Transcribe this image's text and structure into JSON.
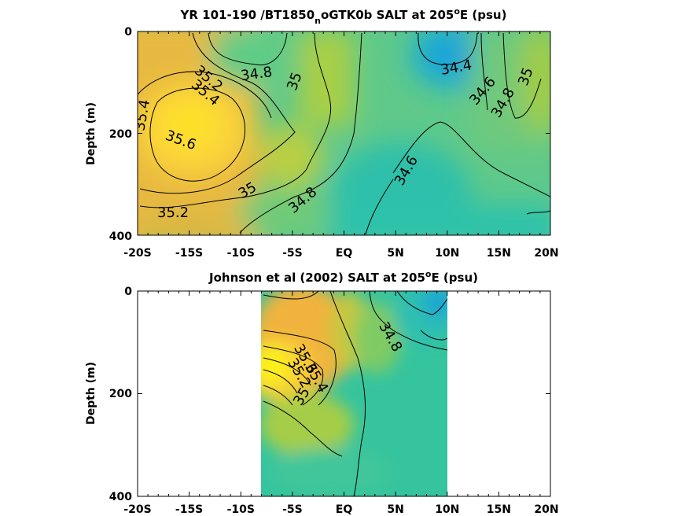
{
  "chart_data": [
    {
      "type": "heatmap",
      "title": {
        "pre": "YR 101-190 /BT1850",
        "sub": "n",
        "mid": "oGTK0b SALT at 205",
        "sup": "o",
        "post": "E (psu)"
      },
      "ylabel": "Depth (m)",
      "x_ticks": [
        "-20S",
        "-15S",
        "-10S",
        "-5S",
        "EQ",
        "5N",
        "10N",
        "15N",
        "20N"
      ],
      "y_ticks": [
        "0",
        "200",
        "400"
      ],
      "xlim": [
        -20,
        20
      ],
      "ylim": [
        400,
        0
      ],
      "data_extent_lat": [
        -20,
        20
      ],
      "contour_labels": [
        "35.2",
        "35.4",
        "35.4",
        "34.8",
        "35",
        "35.6",
        "35",
        "34.8",
        "35.2",
        "34.6",
        "34.4",
        "34.6",
        "34.8",
        "35"
      ]
    },
    {
      "type": "heatmap",
      "title": {
        "pre": "Johnson et al (2002) SALT at 205",
        "sup": "o",
        "post": "E (psu)"
      },
      "ylabel": "Depth (m)",
      "x_ticks": [
        "-20S",
        "-15S",
        "-10S",
        "-5S",
        "EQ",
        "5N",
        "10N",
        "15N",
        "20N"
      ],
      "y_ticks": [
        "0",
        "200",
        "400"
      ],
      "xlim": [
        -20,
        20
      ],
      "ylim": [
        400,
        0
      ],
      "data_extent_lat": [
        -8,
        10
      ],
      "contour_labels": [
        "34.8",
        "35.2",
        "35.4",
        "35.6",
        "35"
      ]
    }
  ],
  "colors": {
    "high_salinity": "#fbe12b",
    "mid_high": "#f5b43a",
    "mid": "#8fcc4e",
    "low": "#28bfad",
    "lowest": "#1aa6d6"
  }
}
